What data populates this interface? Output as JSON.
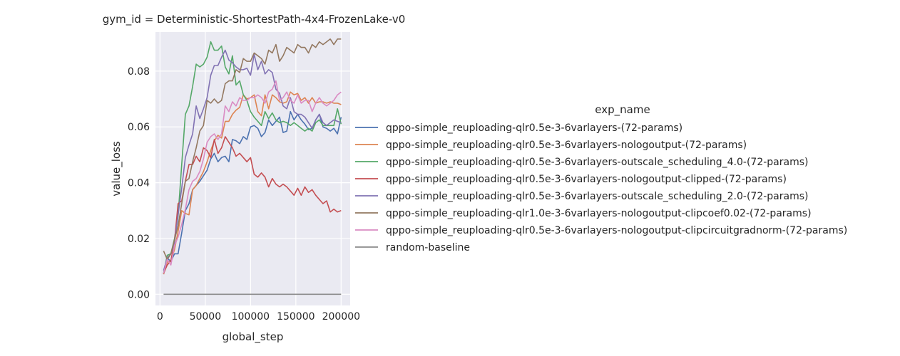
{
  "chart_data": {
    "type": "line",
    "title": "gym_id = Deterministic-ShortestPath-4x4-FrozenLake-v0",
    "xlabel": "global_step",
    "ylabel": "value_loss",
    "xlim": [
      -5000,
      210000
    ],
    "ylim": [
      -0.004,
      0.094
    ],
    "xticks": [
      0,
      50000,
      100000,
      150000,
      200000
    ],
    "xtick_labels": [
      "0",
      "50000",
      "100000",
      "150000",
      "200000"
    ],
    "yticks": [
      0.0,
      0.02,
      0.04,
      0.06,
      0.08
    ],
    "ytick_labels": [
      "0.00",
      "0.02",
      "0.04",
      "0.06",
      "0.08"
    ],
    "grid": true,
    "legend_title": "exp_name",
    "legend_position": "right",
    "x_start": 4000,
    "x_step": 4000,
    "series": [
      {
        "name": "qppo-simple_reuploading-qlr0.5e-3-6varlayers-(72-params)",
        "color": "#4c72b0",
        "values": [
          0.0072,
          0.013,
          0.0118,
          0.0145,
          0.0145,
          0.022,
          0.03,
          0.0325,
          0.0375,
          0.039,
          0.0405,
          0.0425,
          0.0445,
          0.0485,
          0.0505,
          0.0475,
          0.049,
          0.0495,
          0.0475,
          0.0555,
          0.055,
          0.054,
          0.0565,
          0.0555,
          0.06,
          0.0605,
          0.0595,
          0.0565,
          0.058,
          0.0625,
          0.0605,
          0.062,
          0.0635,
          0.058,
          0.0585,
          0.0655,
          0.0625,
          0.0645,
          0.0625,
          0.061,
          0.059,
          0.0595,
          0.0625,
          0.0645,
          0.06,
          0.0595,
          0.0585,
          0.0595,
          0.0575,
          0.0635
        ]
      },
      {
        "name": "qppo-simple_reuploading-qlr0.5e-3-6varlayers-nologoutput-(72-params)",
        "color": "#dd8452",
        "values": [
          0.0072,
          0.0115,
          0.012,
          0.016,
          0.0225,
          0.03,
          0.029,
          0.0285,
          0.0375,
          0.039,
          0.0415,
          0.044,
          0.0475,
          0.0515,
          0.055,
          0.057,
          0.056,
          0.062,
          0.062,
          0.0645,
          0.066,
          0.067,
          0.0715,
          0.07,
          0.0705,
          0.0715,
          0.0655,
          0.064,
          0.0715,
          0.0665,
          0.0715,
          0.0705,
          0.069,
          0.0685,
          0.069,
          0.0725,
          0.0715,
          0.072,
          0.0695,
          0.0705,
          0.0685,
          0.0705,
          0.0685,
          0.069,
          0.069,
          0.0685,
          0.069,
          0.0685,
          0.0685,
          0.068
        ]
      },
      {
        "name": "qppo-simple_reuploading-qlr0.5e-3-6varlayers-outscale_scheduling_4.0-(72-params)",
        "color": "#55a868",
        "values": [
          0.0075,
          0.014,
          0.0145,
          0.02,
          0.028,
          0.0465,
          0.0645,
          0.0675,
          0.0745,
          0.0825,
          0.0815,
          0.0825,
          0.085,
          0.0905,
          0.0875,
          0.0875,
          0.089,
          0.0815,
          0.079,
          0.0855,
          0.075,
          0.0765,
          0.0715,
          0.0695,
          0.0655,
          0.0635,
          0.062,
          0.0605,
          0.0655,
          0.063,
          0.065,
          0.0625,
          0.0615,
          0.062,
          0.0615,
          0.0605,
          0.0615,
          0.0605,
          0.0595,
          0.0585,
          0.0595,
          0.0585,
          0.0615,
          0.0625,
          0.0605,
          0.0605,
          0.0605,
          0.0605,
          0.0665,
          0.061
        ]
      },
      {
        "name": "qppo-simple_reuploading-qlr0.5e-3-6varlayers-nologoutput-clipped-(72-params)",
        "color": "#c44e52",
        "values": [
          0.0075,
          0.0105,
          0.012,
          0.019,
          0.0325,
          0.0335,
          0.0405,
          0.0465,
          0.0465,
          0.0495,
          0.0475,
          0.0525,
          0.0515,
          0.049,
          0.0555,
          0.0505,
          0.0525,
          0.0565,
          0.0545,
          0.0525,
          0.0495,
          0.0505,
          0.049,
          0.0475,
          0.049,
          0.043,
          0.042,
          0.0435,
          0.042,
          0.0385,
          0.0415,
          0.0395,
          0.0385,
          0.0395,
          0.0385,
          0.037,
          0.0355,
          0.038,
          0.0355,
          0.0385,
          0.0365,
          0.0375,
          0.0355,
          0.034,
          0.0325,
          0.0335,
          0.0295,
          0.0305,
          0.0295,
          0.03
        ]
      },
      {
        "name": "qppo-simple_reuploading-qlr0.5e-3-6varlayers-outscale_scheduling_2.0-(72-params)",
        "color": "#8172b3",
        "values": [
          0.0085,
          0.013,
          0.0145,
          0.0185,
          0.0285,
          0.038,
          0.049,
          0.0535,
          0.0575,
          0.0675,
          0.063,
          0.0665,
          0.0705,
          0.0785,
          0.082,
          0.082,
          0.085,
          0.0875,
          0.084,
          0.083,
          0.0815,
          0.0805,
          0.0805,
          0.081,
          0.0785,
          0.086,
          0.0805,
          0.0835,
          0.079,
          0.0805,
          0.0795,
          0.0735,
          0.072,
          0.0675,
          0.0665,
          0.0705,
          0.0655,
          0.0645,
          0.0645,
          0.0635,
          0.0615,
          0.0595,
          0.0625,
          0.0645,
          0.0615,
          0.0605,
          0.0615,
          0.0625,
          0.062,
          0.0615
        ]
      },
      {
        "name": "qppo-simple_reuploading-qlr1.0e-3-6varlayers-nologoutput-clipcoef0.02-(72-params)",
        "color": "#937860",
        "values": [
          0.0155,
          0.0125,
          0.0145,
          0.0195,
          0.0245,
          0.0325,
          0.0405,
          0.0415,
          0.0475,
          0.0525,
          0.0585,
          0.0605,
          0.0695,
          0.0685,
          0.07,
          0.0685,
          0.0695,
          0.0755,
          0.0765,
          0.0765,
          0.0805,
          0.0795,
          0.0845,
          0.0835,
          0.0835,
          0.0865,
          0.0855,
          0.0845,
          0.0825,
          0.0875,
          0.0865,
          0.0895,
          0.0835,
          0.0855,
          0.0885,
          0.0875,
          0.0865,
          0.0895,
          0.0885,
          0.0885,
          0.0865,
          0.0895,
          0.0885,
          0.0905,
          0.0895,
          0.0905,
          0.0915,
          0.0895,
          0.0915,
          0.0915
        ]
      },
      {
        "name": "qppo-simple_reuploading-qlr0.5e-3-6varlayers-nologoutput-clipcircuitgradnorm-(72-params)",
        "color": "#da8bc3",
        "values": [
          0.0075,
          0.0125,
          0.0105,
          0.0175,
          0.0205,
          0.025,
          0.0305,
          0.0375,
          0.0405,
          0.0415,
          0.044,
          0.0485,
          0.0545,
          0.0565,
          0.0575,
          0.0555,
          0.0575,
          0.0675,
          0.0655,
          0.069,
          0.0675,
          0.0705,
          0.0695,
          0.0695,
          0.0705,
          0.0705,
          0.0715,
          0.0705,
          0.0685,
          0.0725,
          0.0735,
          0.0765,
          0.0695,
          0.0705,
          0.0725,
          0.0695,
          0.0685,
          0.0715,
          0.0685,
          0.0695,
          0.0695,
          0.0655,
          0.0685,
          0.0705,
          0.0685,
          0.0675,
          0.0685,
          0.0695,
          0.0715,
          0.0725
        ]
      },
      {
        "name": "random-baseline",
        "color": "#8c8c8c",
        "values": [
          0.0,
          0.0,
          0.0,
          0.0,
          0.0,
          0.0,
          0.0,
          0.0,
          0.0,
          0.0,
          0.0,
          0.0,
          0.0,
          0.0,
          0.0,
          0.0,
          0.0,
          0.0,
          0.0,
          0.0,
          0.0,
          0.0,
          0.0,
          0.0,
          0.0,
          0.0,
          0.0,
          0.0,
          0.0,
          0.0,
          0.0,
          0.0,
          0.0,
          0.0,
          0.0,
          0.0,
          0.0,
          0.0,
          0.0,
          0.0,
          0.0,
          0.0,
          0.0,
          0.0,
          0.0,
          0.0,
          0.0,
          0.0,
          0.0,
          0.0
        ]
      }
    ]
  }
}
